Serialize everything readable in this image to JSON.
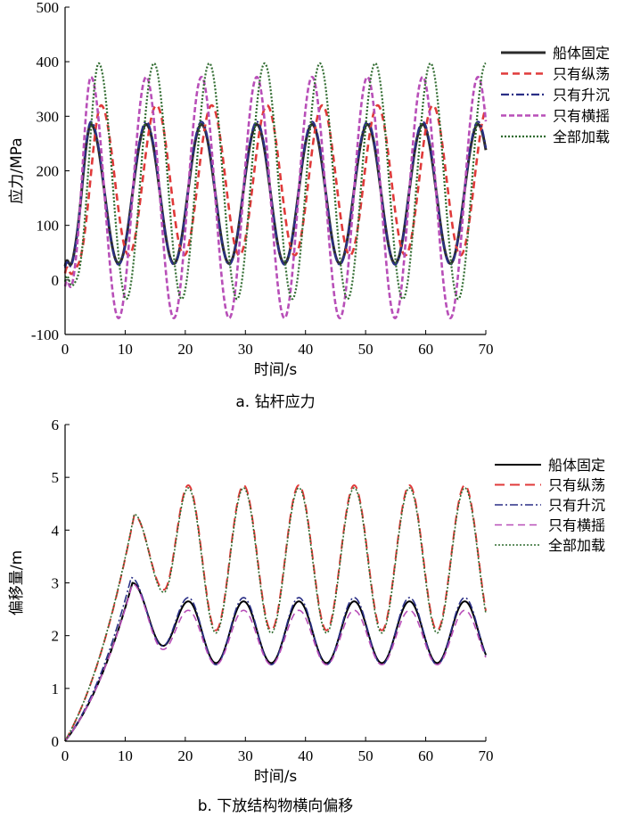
{
  "chart_data": [
    {
      "id": "a",
      "type": "line",
      "caption": "a. 钻杆应力",
      "xlabel": "时间/s",
      "ylabel": "应力/MPa",
      "xlim": [
        0,
        70
      ],
      "ylim": [
        -100,
        500
      ],
      "xticks": [
        0,
        10,
        20,
        30,
        40,
        50,
        60,
        70
      ],
      "yticks": [
        -100,
        0,
        100,
        200,
        300,
        400,
        500
      ],
      "legend_position": "right",
      "series": [
        {
          "name": "船体固定",
          "color": "#2b2b2b",
          "style": "solid",
          "width": 3.0,
          "model": {
            "peak": 285,
            "trough": 30,
            "t1": 4.3,
            "p": 9.2,
            "d0": 1.4,
            "c0": 25
          }
        },
        {
          "name": "只有纵荡",
          "color": "#e03a3a",
          "style": "dash",
          "width": 2.6,
          "model": {
            "peak": 320,
            "trough": 45,
            "t1": 6.0,
            "p": 9.2,
            "d0": 1.6,
            "c0": 12
          }
        },
        {
          "name": "只有升沉",
          "color": "#2a2f86",
          "style": "dashdot",
          "width": 2.2,
          "model": {
            "peak": 290,
            "trough": 28,
            "t1": 4.3,
            "p": 9.2,
            "d0": 1.4,
            "c0": 22
          }
        },
        {
          "name": "只有横摇",
          "color": "#b84fb8",
          "style": "dash-short",
          "width": 2.6,
          "model": {
            "peak": 372,
            "trough": -70,
            "t1": 4.3,
            "p": 9.2,
            "d0": 1.3,
            "c0": -12
          }
        },
        {
          "name": "全部加载",
          "color": "#2f6b2f",
          "style": "dot",
          "width": 2.2,
          "model": {
            "peak": 397,
            "trough": -35,
            "t1": 5.6,
            "p": 9.2,
            "d0": 1.5,
            "c0": -3
          }
        }
      ]
    },
    {
      "id": "b",
      "type": "line",
      "caption": "b. 下放结构物横向偏移",
      "xlabel": "时间/s",
      "ylabel": "偏移量/m",
      "xlim": [
        0,
        70
      ],
      "ylim": [
        0,
        6
      ],
      "xticks": [
        0,
        10,
        20,
        30,
        40,
        50,
        60,
        70
      ],
      "yticks": [
        0,
        1,
        2,
        3,
        4,
        5,
        6
      ],
      "legend_position": "right",
      "series": [
        {
          "name": "船体固定",
          "color": "#000000",
          "style": "solid",
          "width": 2.0,
          "model": {
            "p1": 3.0,
            "t1": 11.2,
            "peak": 2.65,
            "trough": 1.48,
            "tp1": 20.5,
            "p": 9.2
          }
        },
        {
          "name": "只有纵荡",
          "color": "#e03a3a",
          "style": "dash-long",
          "width": 2.0,
          "model": {
            "p1": 4.28,
            "t1": 11.5,
            "peak": 4.85,
            "trough": 2.1,
            "tp1": 20.5,
            "p": 9.2
          }
        },
        {
          "name": "只有升沉",
          "color": "#2a2f86",
          "style": "dashdot",
          "width": 1.6,
          "model": {
            "p1": 3.1,
            "t1": 11.0,
            "peak": 2.72,
            "trough": 1.45,
            "tp1": 20.5,
            "p": 9.2
          }
        },
        {
          "name": "只有横摇",
          "color": "#b84fb8",
          "style": "dash",
          "width": 1.6,
          "model": {
            "p1": 2.98,
            "t1": 11.2,
            "peak": 2.48,
            "trough": 1.45,
            "tp1": 20.5,
            "p": 9.2
          }
        },
        {
          "name": "全部加载",
          "color": "#2f6b2f",
          "style": "dot",
          "width": 1.6,
          "model": {
            "p1": 4.3,
            "t1": 11.5,
            "peak": 4.8,
            "trough": 2.05,
            "tp1": 20.5,
            "p": 9.2
          }
        }
      ]
    }
  ]
}
